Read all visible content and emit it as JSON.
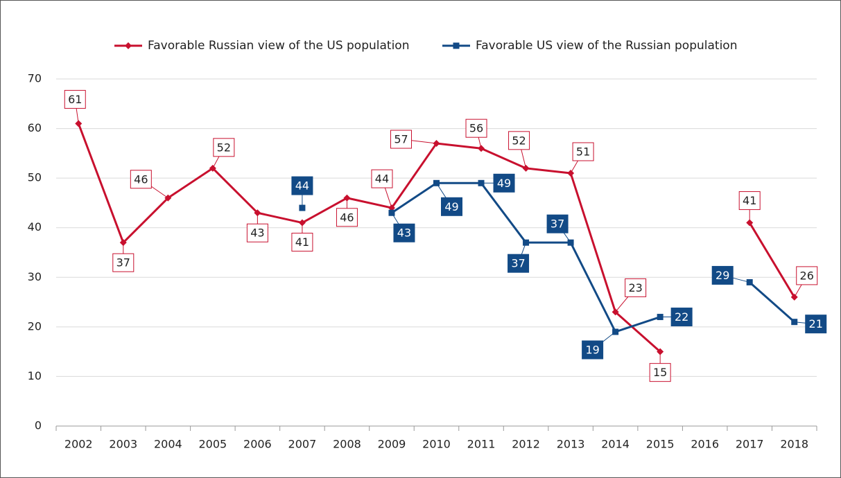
{
  "chart_data": {
    "type": "line",
    "categories": [
      "2002",
      "2003",
      "2004",
      "2005",
      "2006",
      "2007",
      "2008",
      "2009",
      "2010",
      "2011",
      "2012",
      "2013",
      "2014",
      "2015",
      "2016",
      "2017",
      "2018"
    ],
    "series": [
      {
        "name": "Favorable Russian view of the US population",
        "color": "#c8102e",
        "marker": "diamond",
        "values": [
          61,
          37,
          46,
          52,
          43,
          41,
          46,
          44,
          57,
          56,
          52,
          51,
          23,
          15,
          null,
          41,
          26
        ]
      },
      {
        "name": "Favorable US view of the Russian population",
        "color": "#124a86",
        "marker": "square",
        "values": [
          null,
          null,
          null,
          null,
          null,
          44,
          null,
          43,
          49,
          49,
          37,
          37,
          19,
          22,
          null,
          29,
          21
        ]
      }
    ],
    "ylim": [
      0,
      70
    ],
    "yticks": [
      0,
      10,
      20,
      30,
      40,
      50,
      60,
      70
    ],
    "grid": true,
    "legend": "top"
  }
}
